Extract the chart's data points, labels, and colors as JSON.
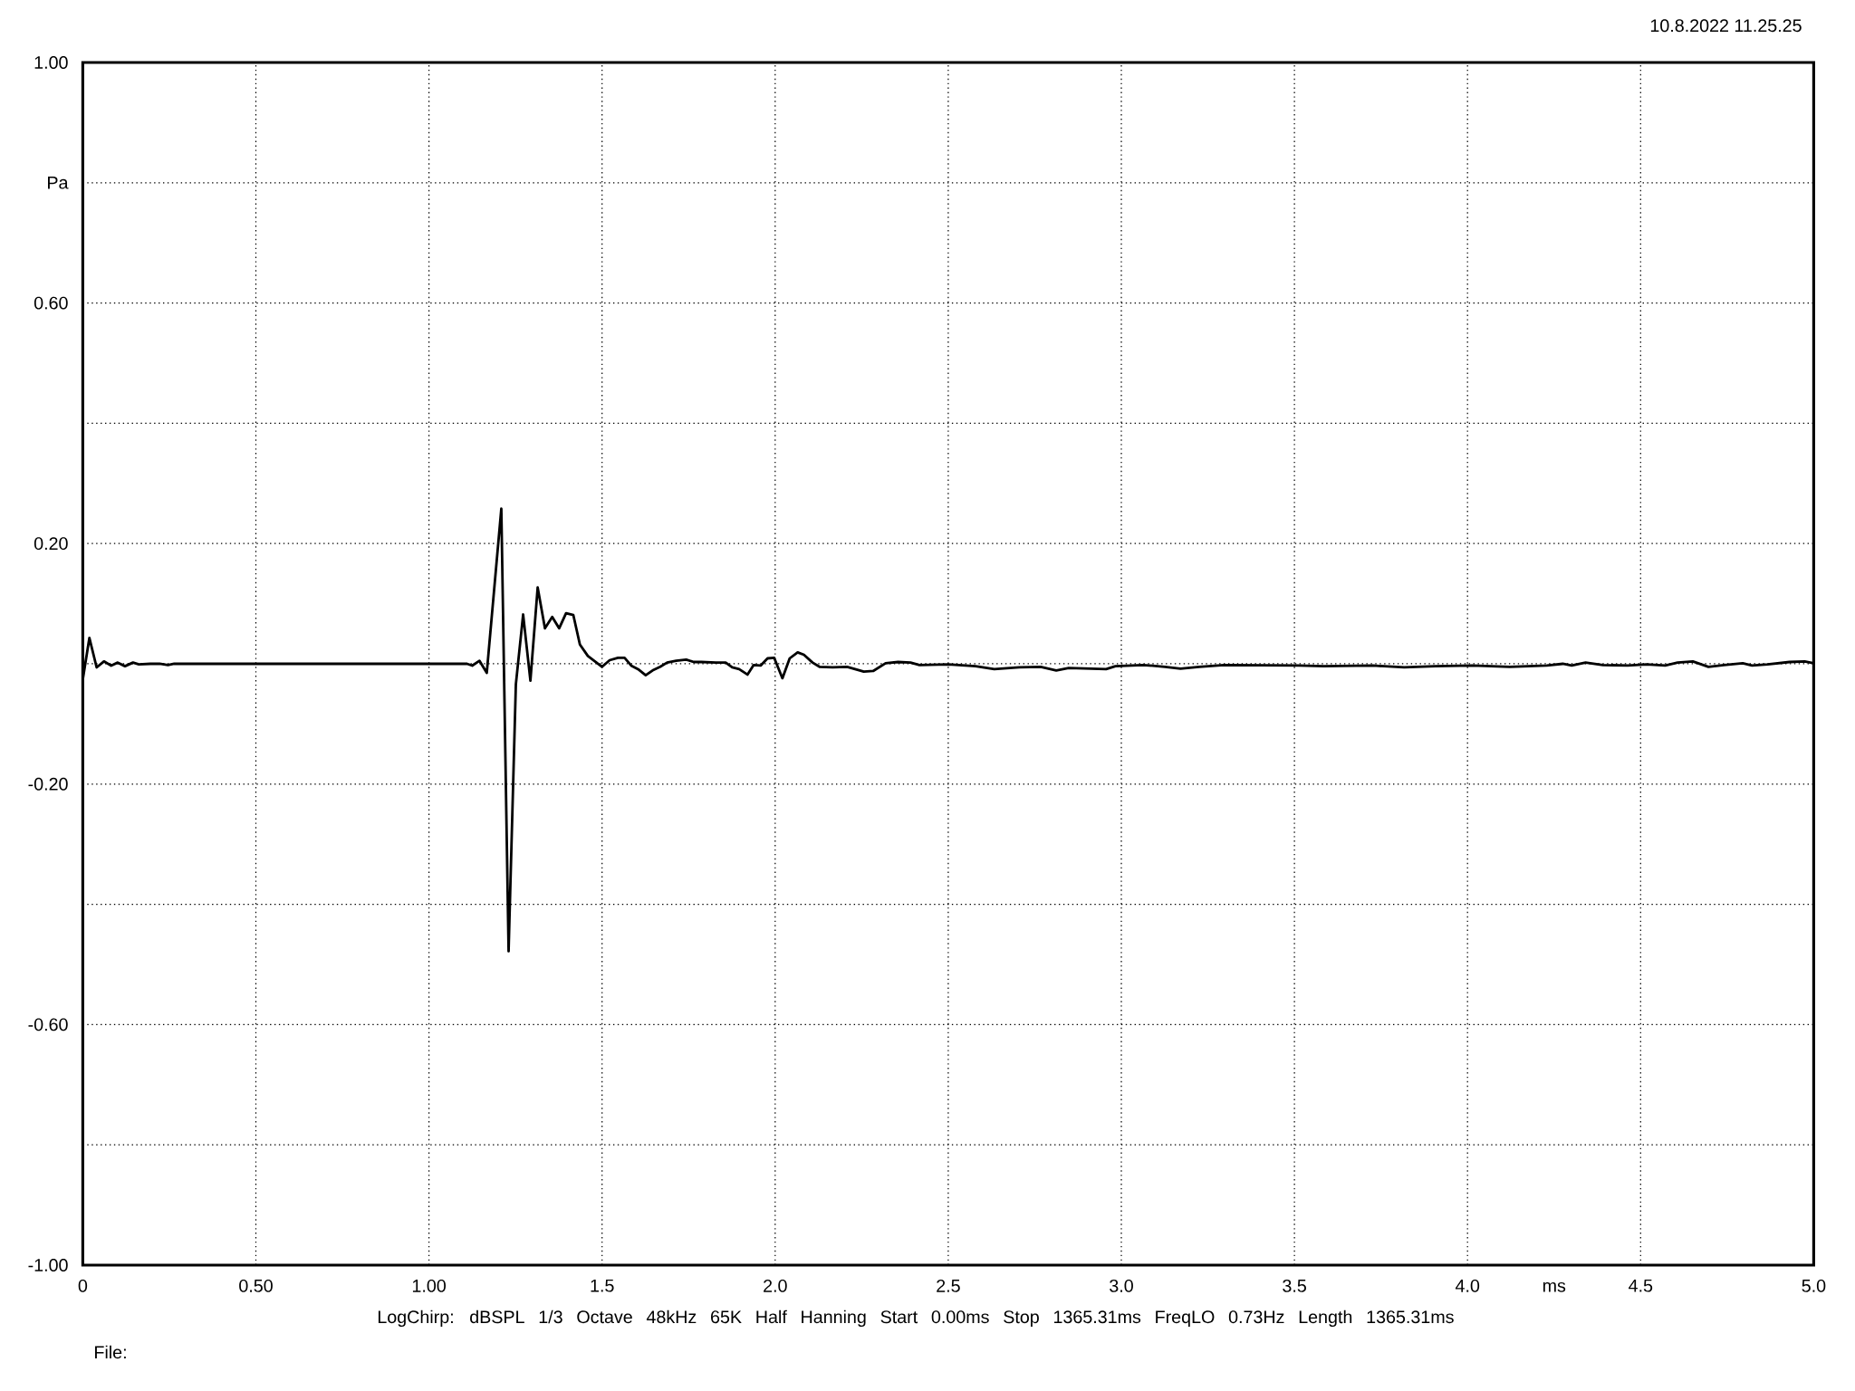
{
  "chart_data": {
    "type": "line",
    "xlabel": "ms",
    "ylabel": "Pa",
    "annotations": [
      "10.8.2022 11.25.25",
      "LogChirp:  dBSPL   1/3 Octave   48kHz   65K   Half Hanning   Start 0.00ms    Stop 1365.31ms    FreqLO 0.73Hz    Length 1365.31ms",
      "File:"
    ],
    "xlim": [
      0,
      5
    ],
    "ylim": [
      -1,
      1
    ],
    "xticks": [
      0,
      {
        "value": 0.5,
        "label": "0.50"
      },
      {
        "value": 1,
        "label": "1.00"
      },
      1.5,
      {
        "value": 2,
        "label": "2.0"
      },
      2.5,
      {
        "value": 3,
        "label": "3.0"
      },
      3.5,
      {
        "value": 4,
        "label": "4.0"
      },
      4.5,
      {
        "value": 5,
        "label": "5.0"
      }
    ],
    "yticks": [
      {
        "value": -1,
        "label": "-1.00"
      },
      {
        "value": -0.8,
        "label": null
      },
      {
        "value": -0.6,
        "label": "-0.60"
      },
      {
        "value": -0.4,
        "label": null
      },
      {
        "value": -0.2,
        "label": "-0.20"
      },
      {
        "value": 0,
        "label": null
      },
      {
        "value": 0.2,
        "label": "0.20"
      },
      {
        "value": 0.4,
        "label": null
      },
      {
        "value": 0.6,
        "label": "0.60"
      },
      {
        "value": 0.8,
        "label": null
      },
      {
        "value": 1,
        "label": "1.00"
      }
    ],
    "grid": true,
    "marker": "none",
    "line_style": "solid",
    "series": [
      {
        "color": "#000000",
        "x": [
          0,
          0.019,
          0.04,
          0.061,
          0.082,
          0.101,
          0.122,
          0.145,
          0.162,
          0.195,
          0.222,
          0.246,
          0.264,
          1.11,
          1.125,
          1.146,
          1.167,
          1.209,
          1.23,
          1.251,
          1.272,
          1.293,
          1.314,
          1.335,
          1.356,
          1.376,
          1.396,
          1.417,
          1.436,
          1.459,
          1.5,
          1.522,
          1.546,
          1.565,
          1.584,
          1.604,
          1.626,
          1.646,
          1.668,
          1.688,
          1.714,
          1.743,
          1.765,
          1.787,
          1.829,
          1.857,
          1.876,
          1.896,
          1.92,
          1.938,
          1.958,
          1.978,
          1.997,
          2.021,
          2.042,
          2.065,
          2.083,
          2.108,
          2.128,
          2.166,
          2.208,
          2.256,
          2.283,
          2.319,
          2.355,
          2.391,
          2.417,
          2.5,
          2.579,
          2.633,
          2.705,
          2.767,
          2.812,
          2.848,
          2.956,
          2.983,
          3.063,
          3.126,
          3.171,
          3.225,
          3.297,
          3.512,
          3.584,
          3.727,
          3.817,
          3.907,
          4.014,
          4.122,
          4.229,
          4.275,
          4.301,
          4.341,
          4.391,
          4.463,
          4.517,
          4.571,
          4.607,
          4.651,
          4.696,
          4.741,
          4.795,
          4.822,
          4.867,
          4.93,
          4.974,
          5.0
        ],
        "values": [
          -0.026,
          0.043,
          -0.006,
          0.004,
          -0.003,
          0.002,
          -0.004,
          0.002,
          -0.001,
          0,
          0,
          -0.002,
          0,
          0,
          -0.003,
          0.005,
          -0.015,
          0.258,
          -0.478,
          -0.034,
          0.082,
          -0.028,
          0.127,
          0.059,
          0.078,
          0.059,
          0.084,
          0.081,
          0.032,
          0.013,
          -0.005,
          0.006,
          0.01,
          0.01,
          -0.003,
          -0.009,
          -0.019,
          -0.011,
          -0.005,
          0.002,
          0.005,
          0.007,
          0.003,
          0.003,
          0.002,
          0.002,
          -0.006,
          -0.009,
          -0.018,
          -0.002,
          -0.003,
          0.009,
          0.01,
          -0.024,
          0.009,
          0.019,
          0.015,
          0.002,
          -0.005,
          -0.006,
          -0.005,
          -0.013,
          -0.012,
          0.001,
          0.003,
          0.002,
          -0.002,
          -0.001,
          -0.004,
          -0.009,
          -0.006,
          -0.005,
          -0.011,
          -0.007,
          -0.009,
          -0.004,
          -0.002,
          -0.005,
          -0.008,
          -0.005,
          -0.002,
          -0.003,
          -0.004,
          -0.003,
          -0.006,
          -0.004,
          -0.003,
          -0.005,
          -0.003,
          0,
          -0.003,
          0.002,
          -0.002,
          -0.003,
          -0.001,
          -0.003,
          0.002,
          0.004,
          -0.005,
          -0.002,
          0.001,
          -0.003,
          -0.001,
          0.003,
          0.004,
          0.001
        ]
      }
    ]
  }
}
